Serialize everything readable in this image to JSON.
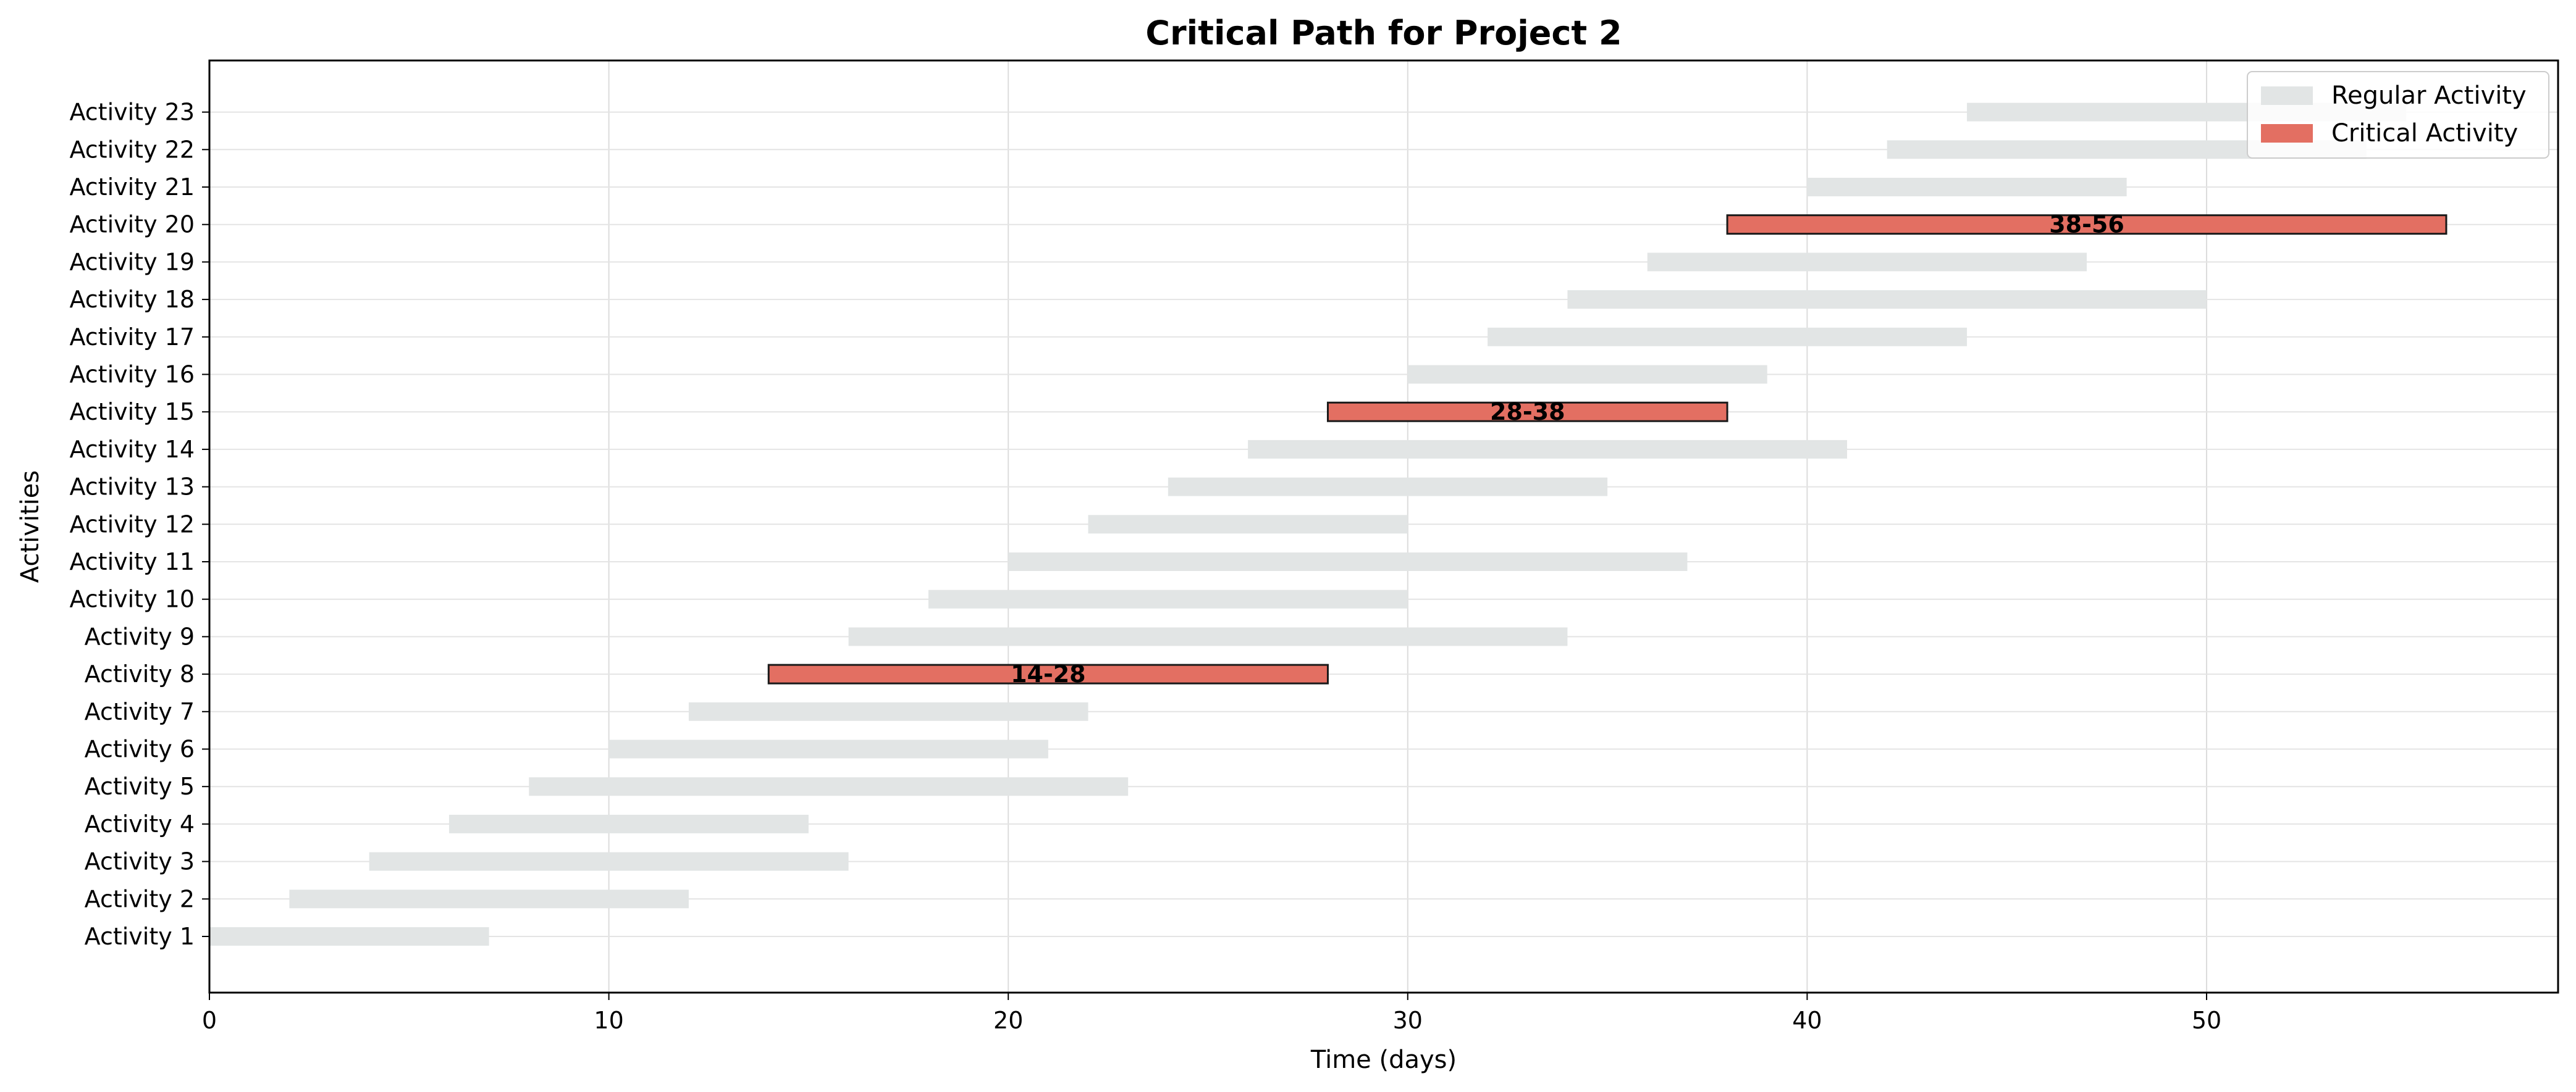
{
  "chart_data": {
    "type": "bar",
    "orientation": "horizontal-gantt",
    "title": "Critical Path for Project 2",
    "xlabel": "Time (days)",
    "ylabel": "Activities",
    "xlim": [
      0,
      58.8
    ],
    "xticks": [
      0,
      10,
      20,
      30,
      40,
      50
    ],
    "grid": true,
    "legend_position": "top-right",
    "legend": [
      {
        "label": "Regular Activity",
        "color": "#e2e5e5"
      },
      {
        "label": "Critical Activity",
        "color": "#e36f62"
      }
    ],
    "colors": {
      "regular": "#e2e5e5",
      "critical": "#e36f62",
      "critical_edge": "#1a1a1a"
    },
    "activities": [
      {
        "name": "Activity 1",
        "start": 0,
        "end": 7,
        "critical": false
      },
      {
        "name": "Activity 2",
        "start": 2,
        "end": 12,
        "critical": false
      },
      {
        "name": "Activity 3",
        "start": 4,
        "end": 16,
        "critical": false
      },
      {
        "name": "Activity 4",
        "start": 6,
        "end": 15,
        "critical": false
      },
      {
        "name": "Activity 5",
        "start": 8,
        "end": 23,
        "critical": false
      },
      {
        "name": "Activity 6",
        "start": 10,
        "end": 21,
        "critical": false
      },
      {
        "name": "Activity 7",
        "start": 12,
        "end": 22,
        "critical": false
      },
      {
        "name": "Activity 8",
        "start": 14,
        "end": 28,
        "critical": true,
        "label": "14-28"
      },
      {
        "name": "Activity 9",
        "start": 16,
        "end": 34,
        "critical": false
      },
      {
        "name": "Activity 10",
        "start": 18,
        "end": 30,
        "critical": false
      },
      {
        "name": "Activity 11",
        "start": 20,
        "end": 37,
        "critical": false
      },
      {
        "name": "Activity 12",
        "start": 22,
        "end": 30,
        "critical": false
      },
      {
        "name": "Activity 13",
        "start": 24,
        "end": 35,
        "critical": false
      },
      {
        "name": "Activity 14",
        "start": 26,
        "end": 41,
        "critical": false
      },
      {
        "name": "Activity 15",
        "start": 28,
        "end": 38,
        "critical": true,
        "label": "28-38"
      },
      {
        "name": "Activity 16",
        "start": 30,
        "end": 39,
        "critical": false
      },
      {
        "name": "Activity 17",
        "start": 32,
        "end": 44,
        "critical": false
      },
      {
        "name": "Activity 18",
        "start": 34,
        "end": 50,
        "critical": false
      },
      {
        "name": "Activity 19",
        "start": 36,
        "end": 47,
        "critical": false
      },
      {
        "name": "Activity 20",
        "start": 38,
        "end": 56,
        "critical": true,
        "label": "38-56"
      },
      {
        "name": "Activity 21",
        "start": 40,
        "end": 48,
        "critical": false
      },
      {
        "name": "Activity 22",
        "start": 42,
        "end": 54,
        "critical": false
      },
      {
        "name": "Activity 23",
        "start": 44,
        "end": 55,
        "critical": false
      }
    ]
  }
}
